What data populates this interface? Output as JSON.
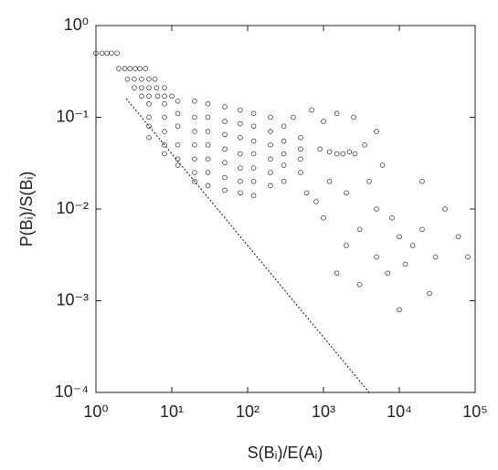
{
  "chart_data": {
    "type": "scatter",
    "xlabel": "S(Bᵢ)/E(Aᵢ)",
    "ylabel": "P(Bᵢ)/S(Bᵢ)",
    "log_x": true,
    "log_y": true,
    "xlim": [
      1,
      100000
    ],
    "ylim": [
      0.0001,
      1
    ],
    "xticks": [
      {
        "value": 1,
        "label": "10⁰"
      },
      {
        "value": 10,
        "label": "10¹"
      },
      {
        "value": 100,
        "label": "10²"
      },
      {
        "value": 1000,
        "label": "10³"
      },
      {
        "value": 10000,
        "label": "10⁴"
      },
      {
        "value": 100000,
        "label": "10⁵"
      }
    ],
    "yticks": [
      {
        "value": 0.0001,
        "label": "10⁻⁴"
      },
      {
        "value": 0.001,
        "label": "10⁻³"
      },
      {
        "value": 0.01,
        "label": "10⁻²"
      },
      {
        "value": 0.1,
        "label": "10⁻¹"
      },
      {
        "value": 1,
        "label": "10⁰"
      }
    ],
    "series": [
      {
        "type": "scatter",
        "color": "#111111",
        "x": [
          1,
          1.2,
          1.4,
          1.6,
          1.9,
          2,
          2.4,
          2.8,
          3.3,
          3.8,
          4.5,
          2.6,
          3.2,
          4,
          5,
          6,
          3.2,
          4,
          5,
          6.3,
          8,
          4,
          5,
          6.5,
          8,
          10,
          5,
          5,
          5,
          5,
          8,
          8,
          8,
          8,
          8,
          12,
          12,
          12,
          12,
          12,
          12,
          20,
          20,
          20,
          20,
          20,
          20,
          20,
          30,
          30,
          30,
          30,
          30,
          30,
          30,
          50,
          50,
          50,
          50,
          50,
          50,
          50,
          80,
          80,
          80,
          80,
          80,
          80,
          80,
          120,
          120,
          120,
          120,
          120,
          120,
          120,
          200,
          200,
          200,
          200,
          200,
          200,
          300,
          300,
          300,
          300,
          300,
          500,
          500,
          500,
          500,
          900,
          1200,
          1500,
          1800,
          2200,
          2600,
          400,
          700,
          1000,
          1500,
          2500,
          600,
          800,
          1000,
          1200,
          2000,
          3000,
          5000,
          8000,
          10000,
          15000,
          20000,
          30000,
          5000,
          3000,
          7000,
          12000,
          40000,
          60000,
          80000,
          2000,
          4000,
          6000,
          20000,
          1500,
          10000,
          25000,
          3500,
          5000
        ],
        "values": [
          0.5,
          0.5,
          0.5,
          0.5,
          0.5,
          0.34,
          0.34,
          0.34,
          0.34,
          0.34,
          0.34,
          0.26,
          0.26,
          0.26,
          0.26,
          0.26,
          0.21,
          0.21,
          0.21,
          0.21,
          0.21,
          0.17,
          0.17,
          0.17,
          0.17,
          0.17,
          0.14,
          0.1,
          0.08,
          0.06,
          0.14,
          0.1,
          0.07,
          0.05,
          0.04,
          0.15,
          0.11,
          0.08,
          0.05,
          0.035,
          0.03,
          0.15,
          0.1,
          0.07,
          0.05,
          0.035,
          0.025,
          0.02,
          0.14,
          0.1,
          0.07,
          0.05,
          0.035,
          0.025,
          0.018,
          0.13,
          0.09,
          0.065,
          0.045,
          0.032,
          0.022,
          0.016,
          0.12,
          0.085,
          0.06,
          0.04,
          0.028,
          0.02,
          0.015,
          0.11,
          0.08,
          0.055,
          0.04,
          0.028,
          0.02,
          0.014,
          0.1,
          0.07,
          0.05,
          0.035,
          0.025,
          0.018,
          0.08,
          0.055,
          0.04,
          0.03,
          0.02,
          0.06,
          0.045,
          0.035,
          0.025,
          0.045,
          0.042,
          0.04,
          0.04,
          0.042,
          0.04,
          0.1,
          0.12,
          0.09,
          0.11,
          0.1,
          0.015,
          0.012,
          0.008,
          0.02,
          0.015,
          0.006,
          0.01,
          0.008,
          0.005,
          0.004,
          0.006,
          0.003,
          0.003,
          0.0015,
          0.002,
          0.0025,
          0.01,
          0.005,
          0.003,
          0.004,
          0.02,
          0.03,
          0.02,
          0.002,
          0.0008,
          0.0012,
          0.05,
          0.07
        ]
      },
      {
        "type": "line",
        "color": "#111111",
        "dashed": true,
        "x": [
          2.5,
          4000
        ],
        "values": [
          0.16,
          0.0001
        ]
      }
    ]
  }
}
